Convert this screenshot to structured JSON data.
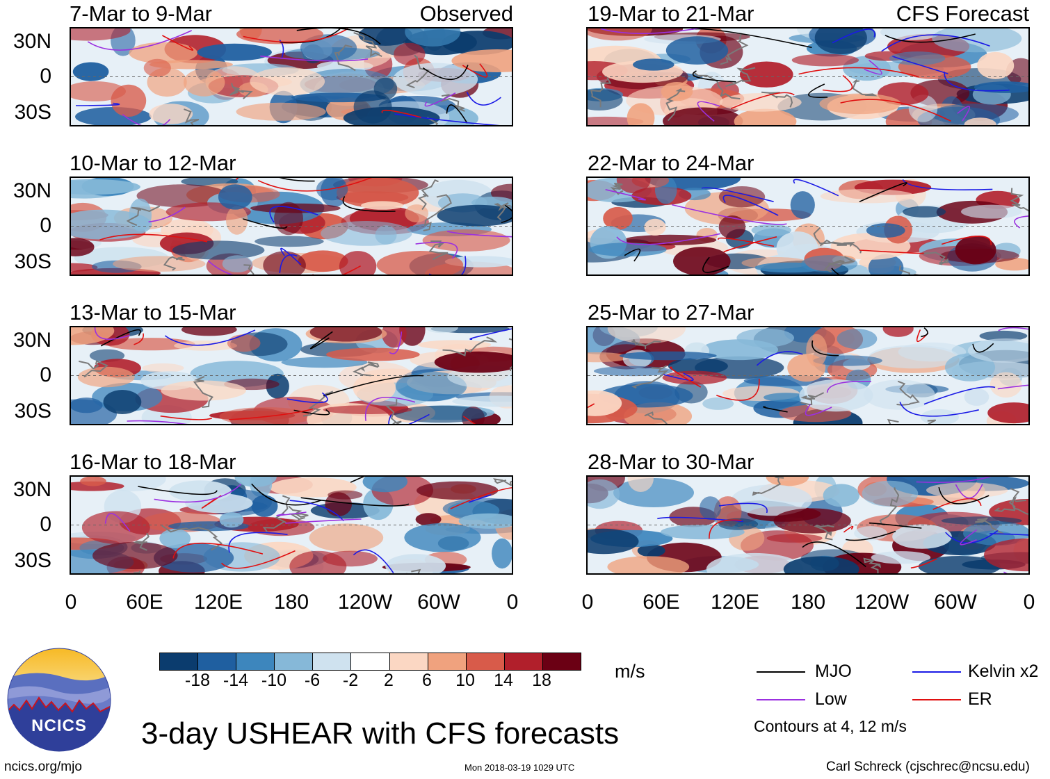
{
  "title": "3-day USHEAR with CFS forecasts",
  "header_left_tag": "Observed",
  "header_right_tag": "CFS Forecast",
  "panels_left": [
    {
      "period": "7-Mar to 9-Mar"
    },
    {
      "period": "10-Mar to 12-Mar"
    },
    {
      "period": "13-Mar to 15-Mar"
    },
    {
      "period": "16-Mar to 18-Mar"
    }
  ],
  "panels_right": [
    {
      "period": "19-Mar to 21-Mar"
    },
    {
      "period": "22-Mar to 24-Mar"
    },
    {
      "period": "25-Mar to 27-Mar"
    },
    {
      "period": "28-Mar to 30-Mar"
    }
  ],
  "lat_labels": [
    "30N",
    "0",
    "30S"
  ],
  "lon_labels": [
    "0",
    "60E",
    "120E",
    "180",
    "120W",
    "60W",
    "0"
  ],
  "colorbar": {
    "unit": "m/s",
    "ticks": [
      "-18",
      "-14",
      "-10",
      "-6",
      "-2",
      "2",
      "6",
      "10",
      "14",
      "18"
    ],
    "colors": [
      "#0b3c6e",
      "#1f5fa0",
      "#3d86bd",
      "#86b8d8",
      "#cfe2ef",
      "#ffffff",
      "#fbd7c3",
      "#f0a27e",
      "#d85b4a",
      "#b11f2b",
      "#6b0014"
    ]
  },
  "legend": {
    "items": [
      {
        "label": "MJO",
        "color": "#000000"
      },
      {
        "label": "Kelvin x2",
        "color": "#1a1ae6"
      },
      {
        "label": "Low",
        "color": "#9b30e0"
      },
      {
        "label": "ER",
        "color": "#e01010"
      }
    ],
    "note": "Contours at 4, 12 m/s"
  },
  "logo_text": "NCICS",
  "footer": {
    "website": "ncics.org/mjo",
    "timestamp": "Mon 2018-03-19 1029 UTC",
    "credit": "Carl Schreck (cjschrec@ncsu.edu)"
  }
}
